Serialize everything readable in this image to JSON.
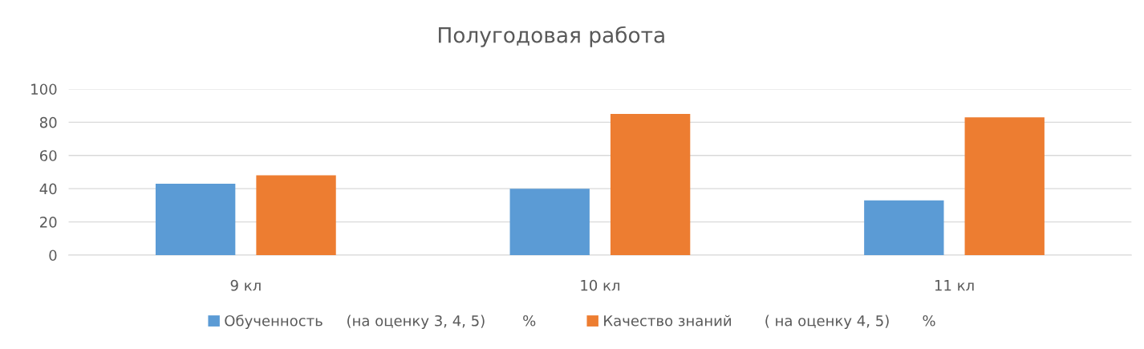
{
  "chart_data": {
    "type": "bar",
    "title": "Полугодовая работа",
    "categories": [
      "9 кл",
      "10 кл",
      "11 кл"
    ],
    "series": [
      {
        "name": "Обученность     (на оценку 3, 4, 5)        %",
        "color": "#5b9bd5",
        "values": [
          43,
          40,
          33
        ]
      },
      {
        "name": "Качество знаний       ( на оценку 4, 5)       %",
        "color": "#ed7d31",
        "values": [
          48,
          85,
          83
        ]
      }
    ],
    "ylim": [
      0,
      100
    ],
    "yticks": [
      0,
      20,
      40,
      60,
      80,
      100
    ],
    "grid": "y",
    "legend": "bottom"
  }
}
